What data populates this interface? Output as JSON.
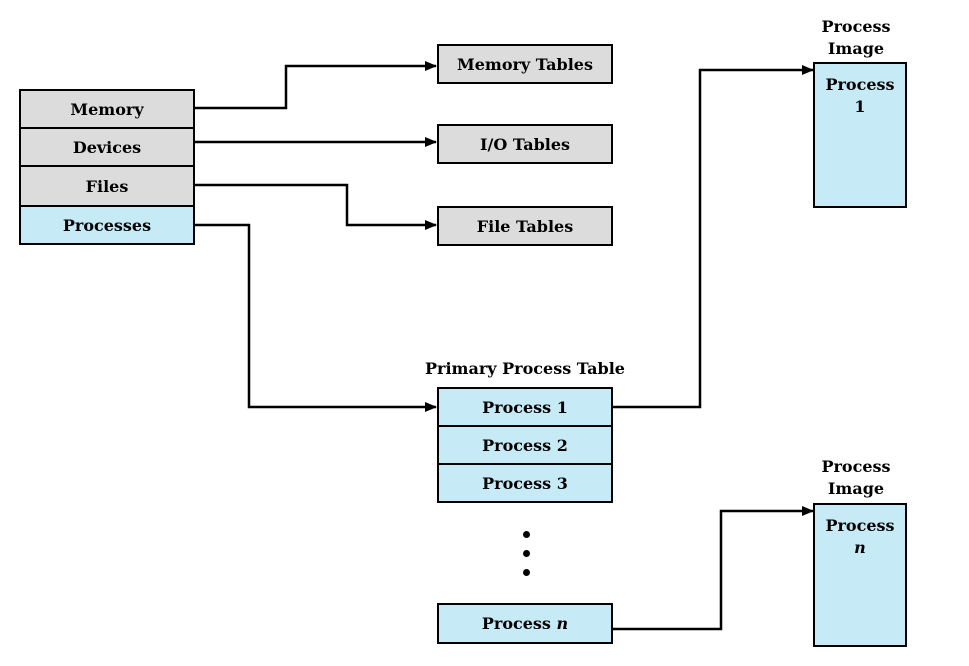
{
  "colors": {
    "category_fill": "#dcdcdc",
    "process_fill": "#c6eaf6",
    "line": "#000000"
  },
  "categories": [
    {
      "label": "Memory"
    },
    {
      "label": "Devices"
    },
    {
      "label": "Files"
    },
    {
      "label": "Processes"
    }
  ],
  "tables": {
    "memory": "Memory Tables",
    "io": "I/O Tables",
    "file": "File Tables"
  },
  "primary_table": {
    "title": "Primary Process Table",
    "rows": [
      "Process 1",
      "Process 2",
      "Process 3"
    ],
    "last_row_prefix": "Process ",
    "last_row_var": "n"
  },
  "process_images": [
    {
      "title": "Process Image",
      "content_line1": "Process",
      "content_line2": "1"
    },
    {
      "title": "Process Image",
      "content_line1": "Process",
      "content_line2": "n"
    }
  ]
}
